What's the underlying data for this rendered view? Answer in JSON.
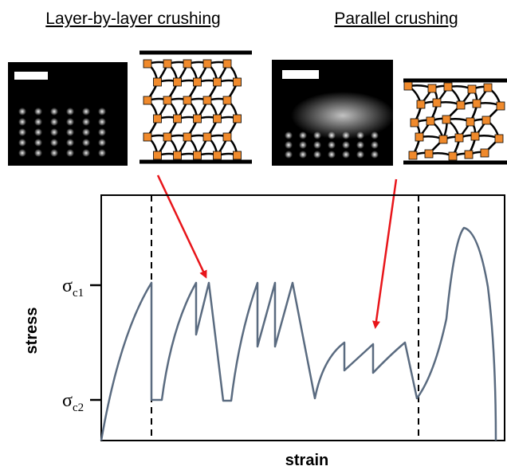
{
  "panels": [
    {
      "title": "Layer-by-layer crushing"
    },
    {
      "title": "Parallel crushing"
    }
  ],
  "plot": {
    "y_label": "stress",
    "x_label": "strain",
    "levels": [
      {
        "symbol": "σ",
        "subscript": "c1"
      },
      {
        "symbol": "σ",
        "subscript": "c2"
      }
    ]
  }
}
